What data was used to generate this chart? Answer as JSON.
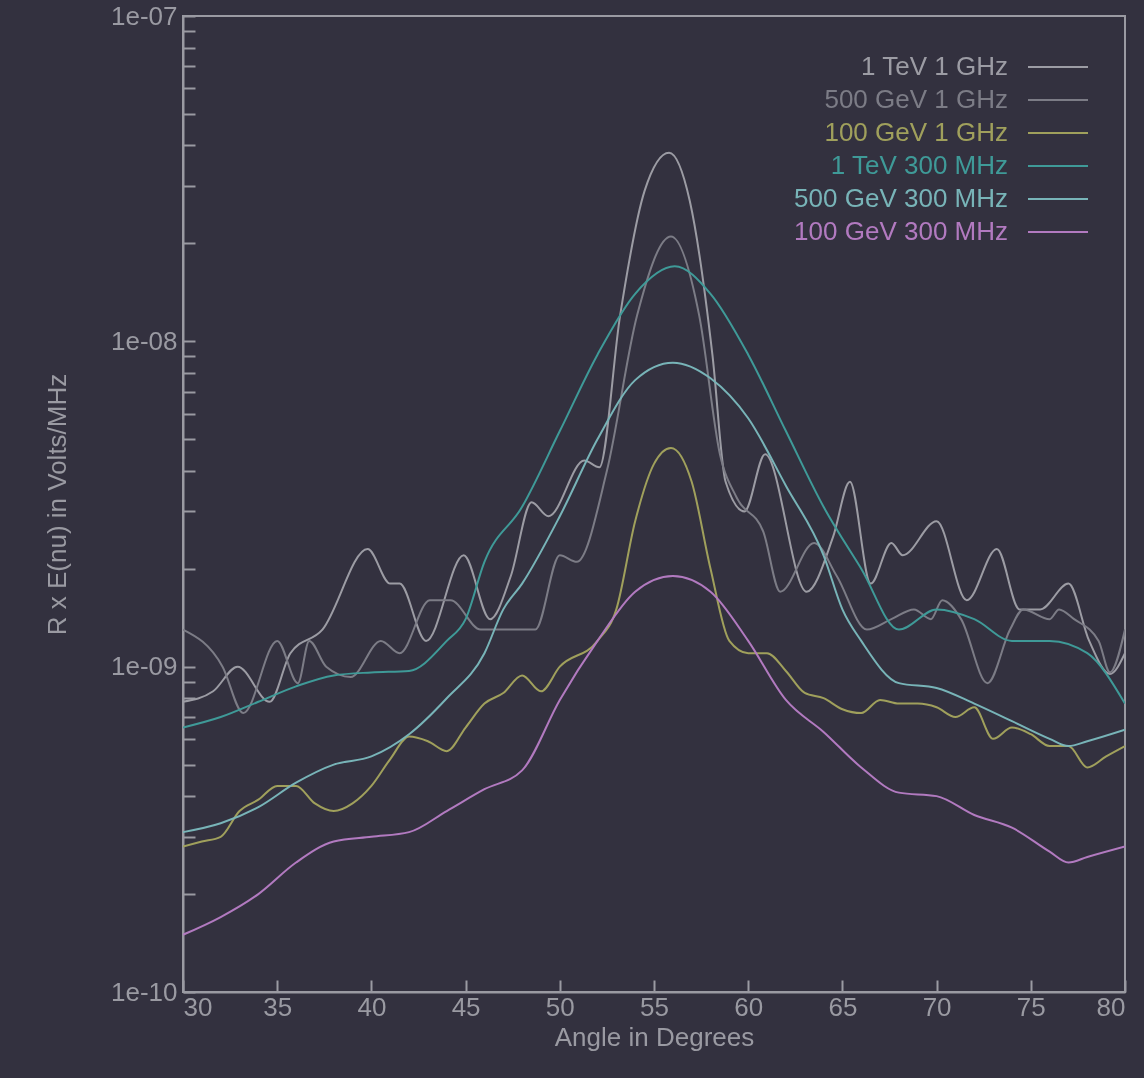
{
  "chart_data": {
    "type": "line",
    "xlabel": "Angle in Degrees",
    "ylabel": "R x E(nu) in Volts/MHz",
    "log": "y",
    "legend": "top right",
    "grid": false,
    "xlim": [
      30,
      80
    ],
    "xticks": [
      30,
      35,
      40,
      45,
      50,
      55,
      60,
      65,
      70,
      75,
      80
    ],
    "ylim": [
      1e-10,
      1e-07
    ],
    "yticks": [
      {
        "value": 1e-10,
        "label": "1e-10"
      },
      {
        "value": 2e-10,
        "label": null
      },
      {
        "value": 3e-10,
        "label": null
      },
      {
        "value": 4e-10,
        "label": null
      },
      {
        "value": 5e-10,
        "label": null
      },
      {
        "value": 6e-10,
        "label": null
      },
      {
        "value": 7e-10,
        "label": null
      },
      {
        "value": 8e-10,
        "label": null
      },
      {
        "value": 9e-10,
        "label": null
      },
      {
        "value": 1e-09,
        "label": "1e-09"
      },
      {
        "value": 2e-09,
        "label": null
      },
      {
        "value": 3e-09,
        "label": null
      },
      {
        "value": 4e-09,
        "label": null
      },
      {
        "value": 5e-09,
        "label": null
      },
      {
        "value": 6e-09,
        "label": null
      },
      {
        "value": 7e-09,
        "label": null
      },
      {
        "value": 8e-09,
        "label": null
      },
      {
        "value": 9e-09,
        "label": null
      },
      {
        "value": 1e-08,
        "label": "1e-08"
      },
      {
        "value": 2e-08,
        "label": null
      },
      {
        "value": 3e-08,
        "label": null
      },
      {
        "value": 4e-08,
        "label": null
      },
      {
        "value": 5e-08,
        "label": null
      },
      {
        "value": 6e-08,
        "label": null
      },
      {
        "value": 7e-08,
        "label": null
      },
      {
        "value": 8e-08,
        "label": null
      },
      {
        "value": 9e-08,
        "label": null
      },
      {
        "value": 1e-07,
        "label": "1e-07"
      }
    ],
    "series": [
      {
        "name": "1 TeV 1 GHz",
        "color": "#9c9ca4",
        "x": [
          30,
          31.6,
          32.9,
          34.6,
          35.7,
          37.4,
          39.8,
          41,
          41.5,
          42.9,
          44.9,
          46.3,
          47.4,
          48.5,
          49.4,
          51.3,
          52.1,
          53.2,
          54.5,
          55.8,
          56.9,
          58.1,
          58.8,
          59.8,
          60.9,
          63.1,
          64.5,
          65.4,
          66.5,
          67.6,
          68.2,
          70,
          71.6,
          73.2,
          74.4,
          75.5,
          77,
          78.1,
          79.2,
          80
        ],
        "values": [
          7.8e-10,
          8.4e-10,
          1e-09,
          7.8e-10,
          1.1e-09,
          1.3e-09,
          2.3e-09,
          1.8e-09,
          1.8e-09,
          1.2e-09,
          2.2e-09,
          1.4e-09,
          1.9e-09,
          3.2e-09,
          2.9e-09,
          4.3e-09,
          4.1e-09,
          1.2e-08,
          2.9e-08,
          3.8e-08,
          2.7e-08,
          9.1e-09,
          3.7e-09,
          3e-09,
          4.5e-09,
          1.7e-09,
          2.5e-09,
          3.7e-09,
          1.8e-09,
          2.4e-09,
          2.2e-09,
          2.8e-09,
          1.6e-09,
          2.3e-09,
          1.5e-09,
          1.5e-09,
          1.8e-09,
          1.2e-09,
          9.5e-10,
          1.1e-09
        ]
      },
      {
        "name": "500 GeV 1 GHz",
        "color": "#7c7c86",
        "x": [
          30,
          32.1,
          33.2,
          35,
          36.1,
          36.7,
          37.6,
          38.9,
          40.5,
          41.5,
          43.1,
          44.2,
          45.8,
          47.4,
          48.7,
          50,
          50.9,
          52.5,
          54.1,
          55.9,
          57.4,
          58.5,
          59.4,
          60.8,
          61.7,
          63.5,
          64.7,
          66.3,
          67.6,
          68.8,
          69.7,
          70.3,
          71.3,
          72.7,
          73.9,
          74.6,
          76,
          76.5,
          77.3,
          78.6,
          79.2,
          80
        ],
        "values": [
          1.3e-09,
          1e-09,
          7.2e-10,
          1.2e-09,
          8.9e-10,
          1.2e-09,
          1e-09,
          9.3e-10,
          1.2e-09,
          1.1e-09,
          1.6e-09,
          1.6e-09,
          1.3e-09,
          1.3e-09,
          1.3e-09,
          2.2e-09,
          2.1e-09,
          4e-09,
          1.2e-08,
          2.1e-08,
          1.2e-08,
          4.5e-09,
          3.3e-09,
          2.6e-09,
          1.7e-09,
          2.4e-09,
          1.9e-09,
          1.3e-09,
          1.4e-09,
          1.5e-09,
          1.4e-09,
          1.6e-09,
          1.4e-09,
          8.9e-10,
          1.3e-09,
          1.5e-09,
          1.4e-09,
          1.5e-09,
          1.4e-09,
          1.2e-09,
          9.6e-10,
          1.3e-09
        ]
      },
      {
        "name": "100 GeV 1 GHz",
        "color": "#a0a05c",
        "x": [
          30,
          31,
          32,
          33,
          34,
          35,
          36,
          37,
          38,
          39,
          40,
          41,
          42,
          43,
          44,
          45,
          46,
          47,
          48,
          49,
          50,
          52,
          53,
          54,
          55,
          55.9,
          57,
          58,
          59,
          60,
          61,
          62,
          63,
          64,
          65,
          66,
          67,
          68,
          69,
          70,
          71,
          72,
          73,
          74,
          75,
          76,
          77,
          78,
          79,
          80
        ],
        "values": [
          2.8e-10,
          2.9e-10,
          3e-10,
          3.6e-10,
          3.9e-10,
          4.3e-10,
          4.3e-10,
          3.8e-10,
          3.6e-10,
          3.8e-10,
          4.3e-10,
          5.2e-10,
          6.1e-10,
          5.9e-10,
          5.5e-10,
          6.5e-10,
          7.7e-10,
          8.3e-10,
          9.4e-10,
          8.4e-10,
          1e-09,
          1.2e-09,
          1.5e-09,
          2.8e-09,
          4.2e-09,
          4.7e-09,
          3.7e-09,
          2e-09,
          1.2e-09,
          1.1e-09,
          1.1e-09,
          9.7e-10,
          8.3e-10,
          8e-10,
          7.4e-10,
          7.2e-10,
          7.9e-10,
          7.7e-10,
          7.7e-10,
          7.5e-10,
          7e-10,
          7.5e-10,
          6e-10,
          6.5e-10,
          6.2e-10,
          5.7e-10,
          5.7e-10,
          4.9e-10,
          5.3e-10,
          5.7e-10
        ]
      },
      {
        "name": "1 TeV 300 MHz",
        "color": "#3f9a98",
        "x": [
          30,
          32,
          34,
          36,
          38,
          40,
          42,
          44,
          45,
          46,
          48,
          50,
          52,
          54,
          56.1,
          58,
          60,
          62,
          64,
          66,
          68,
          70,
          72,
          74,
          76,
          78,
          80
        ],
        "values": [
          6.5e-10,
          7e-10,
          7.8e-10,
          8.7e-10,
          9.4e-10,
          9.6e-10,
          9.7e-10,
          1.2e-09,
          1.4e-09,
          2.1e-09,
          3.1e-09,
          5.3e-09,
          9.1e-09,
          1.4e-08,
          1.7e-08,
          1.4e-08,
          9.1e-09,
          5.3e-09,
          3.1e-09,
          2e-09,
          1.3e-09,
          1.5e-09,
          1.4e-09,
          1.2e-09,
          1.2e-09,
          1.1e-09,
          7.7e-10
        ]
      },
      {
        "name": "500 GeV 300 MHz",
        "color": "#78b4b8",
        "x": [
          30,
          32,
          34,
          36,
          38,
          40,
          42,
          44,
          46,
          47,
          48,
          50,
          52,
          54,
          56,
          58,
          60,
          62,
          64,
          65,
          66,
          68,
          70,
          72,
          74,
          76,
          77,
          78,
          80
        ],
        "values": [
          3.1e-10,
          3.3e-10,
          3.7e-10,
          4.4e-10,
          5e-10,
          5.3e-10,
          6.2e-10,
          8e-10,
          1.1e-09,
          1.5e-09,
          1.8e-09,
          2.9e-09,
          5e-09,
          7.6e-09,
          8.6e-09,
          7.7e-09,
          5.8e-09,
          3.6e-09,
          2.2e-09,
          1.5e-09,
          1.2e-09,
          8.9e-10,
          8.6e-10,
          7.7e-10,
          6.8e-10,
          6e-10,
          5.7e-10,
          5.9e-10,
          6.4e-10
        ]
      },
      {
        "name": "100 GeV 300 MHz",
        "color": "#b27ac0",
        "x": [
          30,
          32,
          34,
          36,
          38,
          40,
          42,
          44,
          46,
          48,
          50,
          52,
          54,
          56,
          58,
          60,
          62,
          64,
          66,
          68,
          70,
          72,
          74,
          76,
          77,
          78,
          80
        ],
        "values": [
          1.5e-10,
          1.7e-10,
          2e-10,
          2.5e-10,
          2.9e-10,
          3e-10,
          3.1e-10,
          3.6e-10,
          4.2e-10,
          4.8e-10,
          7.9e-10,
          1.2e-09,
          1.7e-09,
          1.9e-09,
          1.7e-09,
          1.2e-09,
          7.9e-10,
          6.3e-10,
          4.9e-10,
          4.1e-10,
          4e-10,
          3.5e-10,
          3.2e-10,
          2.7e-10,
          2.5e-10,
          2.6e-10,
          2.8e-10
        ]
      }
    ]
  }
}
